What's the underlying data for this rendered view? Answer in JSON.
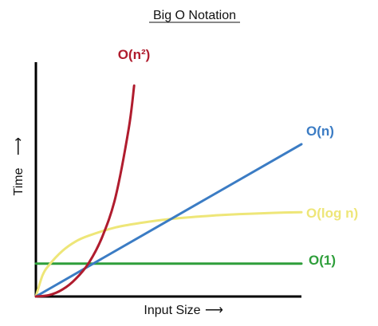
{
  "chart_data": {
    "type": "line",
    "title": "Big O Notation",
    "xlabel": "Input Size",
    "ylabel": "Time",
    "x_arrow": "⟶",
    "y_arrow": "⟶",
    "xlim": [
      0,
      10
    ],
    "ylim": [
      0,
      10
    ],
    "grid": false,
    "legend": "none",
    "series": [
      {
        "name": "O(1)",
        "color": "#2e9e3a",
        "x": [
          0,
          10
        ],
        "y": [
          1.4,
          1.4
        ]
      },
      {
        "name": "O(log n)",
        "color": "#eee678",
        "x": [
          0,
          0.25,
          0.5,
          1,
          1.5,
          2,
          3,
          4,
          5,
          6,
          7,
          8,
          9,
          10
        ],
        "y": [
          0,
          0.9,
          1.35,
          1.95,
          2.35,
          2.6,
          2.95,
          3.15,
          3.3,
          3.4,
          3.48,
          3.53,
          3.57,
          3.6
        ]
      },
      {
        "name": "O(n)",
        "color": "#3b7cc4",
        "x": [
          0,
          10
        ],
        "y": [
          0,
          6.5
        ]
      },
      {
        "name": "O(n²)",
        "color": "#b01c2e",
        "x": [
          0,
          0.5,
          1,
          1.5,
          2,
          2.5,
          3,
          3.5,
          3.7
        ],
        "y": [
          0,
          0.06,
          0.3,
          0.75,
          1.45,
          2.55,
          4.25,
          7.2,
          9.0
        ]
      }
    ]
  }
}
